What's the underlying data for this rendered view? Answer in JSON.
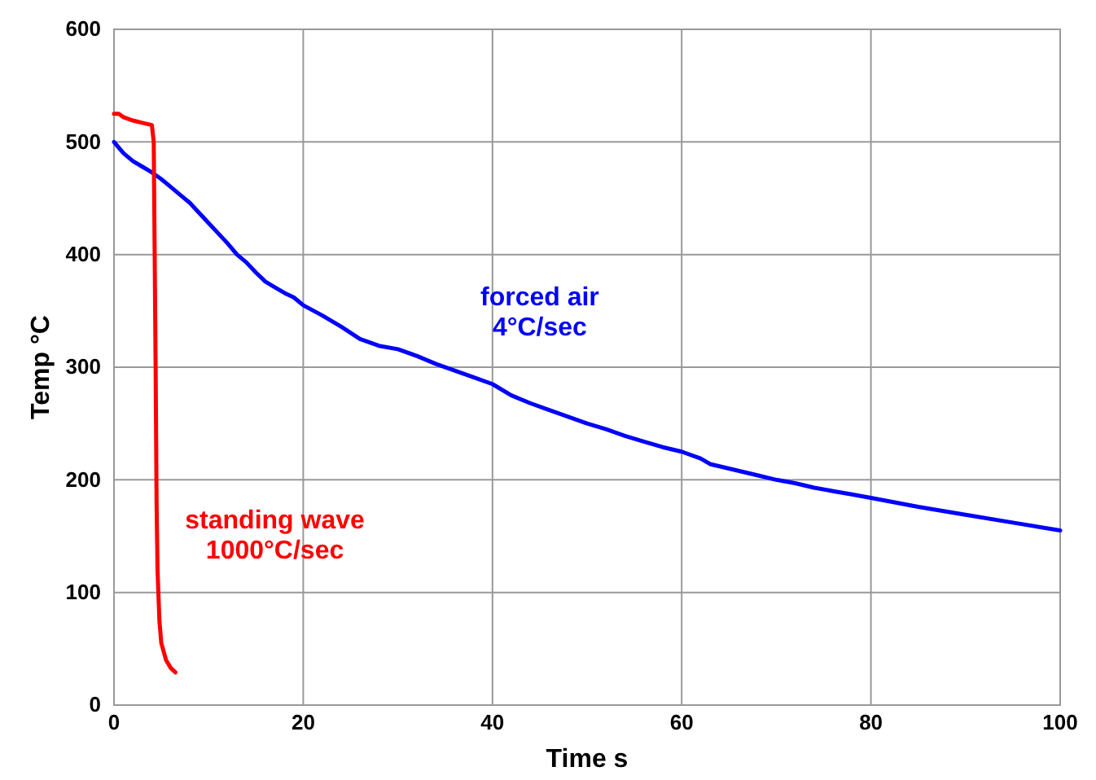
{
  "chart_data": {
    "type": "line",
    "xlabel": "Time s",
    "ylabel": "Temp °C",
    "xlim": [
      0,
      100
    ],
    "ylim": [
      0,
      600
    ],
    "xticks": [
      0,
      20,
      40,
      60,
      80,
      100
    ],
    "yticks": [
      0,
      100,
      200,
      300,
      400,
      500,
      600
    ],
    "grid": true,
    "line_style": "solid",
    "marker": "none",
    "series": [
      {
        "color": "#0000ff",
        "x": [
          0,
          1,
          2,
          3,
          4,
          5,
          6,
          7,
          8,
          9,
          10,
          11,
          12,
          13,
          14,
          15,
          16,
          17,
          18,
          19,
          20,
          22,
          24,
          26,
          28,
          30,
          32,
          34,
          36,
          38,
          40,
          42,
          44,
          46,
          48,
          50,
          52,
          54,
          56,
          58,
          60,
          62,
          63,
          64,
          66,
          68,
          70,
          72,
          74,
          76,
          78,
          80,
          85,
          90,
          95,
          100
        ],
        "values": [
          500,
          490,
          483,
          478,
          473,
          467,
          460,
          453,
          446,
          437,
          428,
          419,
          410,
          400,
          393,
          384,
          376,
          371,
          366,
          362,
          355,
          346,
          336,
          325,
          319,
          316,
          310,
          303,
          297,
          291,
          285,
          275,
          268,
          262,
          256,
          250,
          245,
          239,
          234,
          229,
          225,
          219,
          214,
          212,
          208,
          204,
          200,
          197,
          193,
          190,
          187,
          184,
          176,
          169,
          162,
          155
        ]
      },
      {
        "color": "#ff0000",
        "x": [
          0,
          0.5,
          1,
          2,
          3,
          4,
          4.2,
          4.3,
          4.4,
          4.5,
          4.6,
          4.8,
          5,
          5.5,
          6,
          6.5
        ],
        "values": [
          525,
          525,
          522,
          519,
          517,
          515,
          500,
          400,
          300,
          180,
          120,
          75,
          55,
          40,
          33,
          29
        ]
      }
    ],
    "annotations": [
      "forced air\n4°C/sec",
      "standing wave\n1000°C/sec"
    ]
  }
}
